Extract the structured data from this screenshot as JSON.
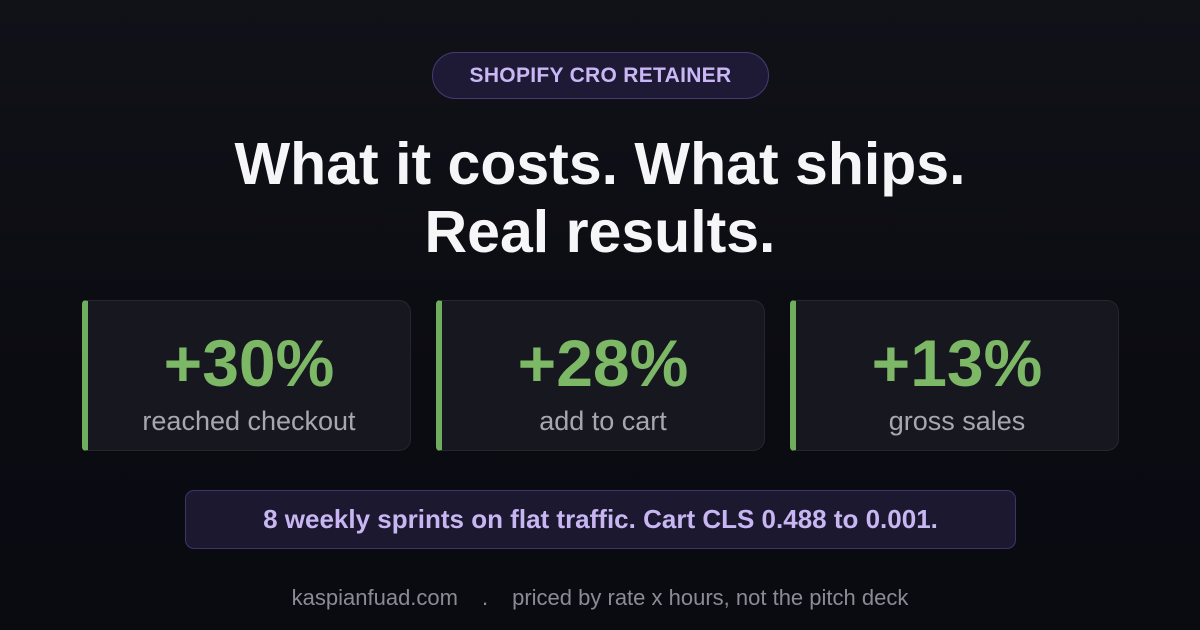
{
  "badge": {
    "label": "SHOPIFY CRO RETAINER"
  },
  "headline": {
    "line1": "What it costs. What ships.",
    "line2": "Real results."
  },
  "stats": [
    {
      "value": "+30%",
      "label": "reached checkout"
    },
    {
      "value": "+28%",
      "label": "add to cart"
    },
    {
      "value": "+13%",
      "label": "gross sales"
    }
  ],
  "note": {
    "text": "8 weekly sprints on flat traffic. Cart CLS 0.488 to 0.001."
  },
  "footer": {
    "site": "kaspianfuad.com",
    "separator": ".",
    "tagline": "priced by rate x hours, not the pitch deck"
  },
  "colors": {
    "background": "#0d0d15",
    "accent_green": "#7cb866",
    "accent_purple": "#c9b8f5",
    "text_primary": "#f6f6f8",
    "text_muted": "#a7a7b0"
  }
}
